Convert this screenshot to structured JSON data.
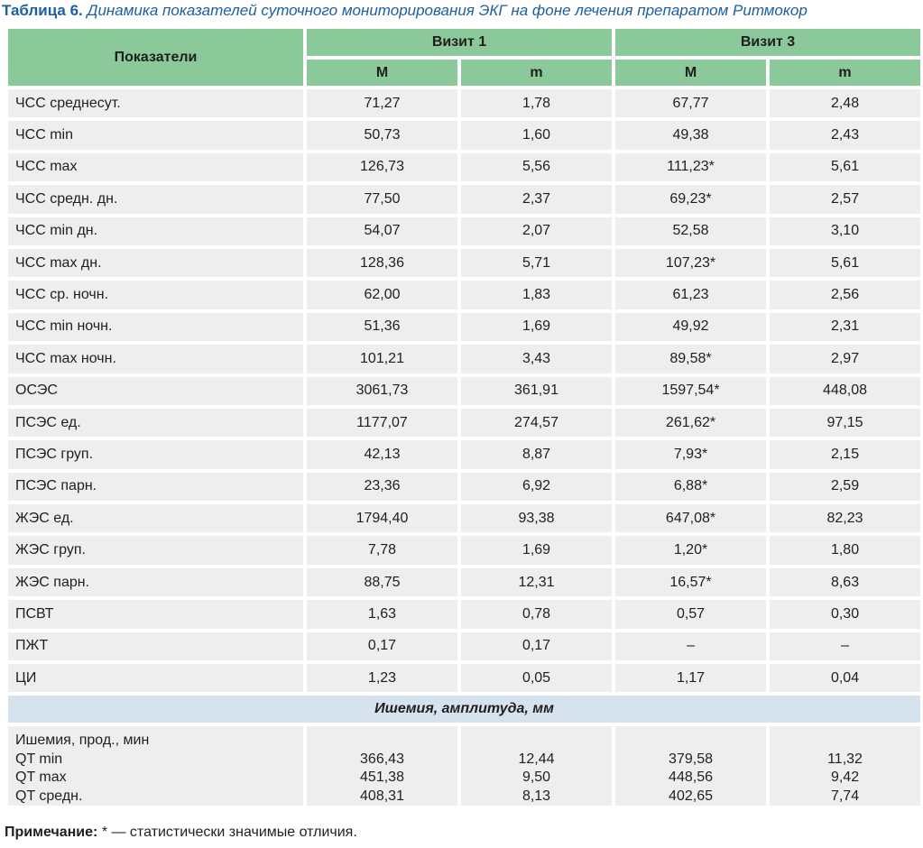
{
  "caption": {
    "label": "Таблица 6.",
    "title": "Динамика показателей суточного мониторирования ЭКГ на фоне лечения препаратом Ритмокор"
  },
  "header": {
    "indicator": "Показатели",
    "visit1": "Визит 1",
    "visit3": "Визит 3",
    "sub": [
      "M",
      "m",
      "M",
      "m"
    ]
  },
  "rows": [
    {
      "name": "ЧСС среднесут.",
      "v1M": "71,27",
      "v1m": "1,78",
      "v3M": "67,77",
      "v3m": "2,48"
    },
    {
      "name": "ЧСС min",
      "v1M": "50,73",
      "v1m": "1,60",
      "v3M": "49,38",
      "v3m": "2,43"
    },
    {
      "name": "ЧСС max",
      "v1M": "126,73",
      "v1m": "5,56",
      "v3M": "111,23*",
      "v3m": "5,61"
    },
    {
      "name": "ЧСС средн. дн.",
      "v1M": "77,50",
      "v1m": "2,37",
      "v3M": "69,23*",
      "v3m": "2,57"
    },
    {
      "name": "ЧСС min дн.",
      "v1M": "54,07",
      "v1m": "2,07",
      "v3M": "52,58",
      "v3m": "3,10"
    },
    {
      "name": "ЧСС max дн.",
      "v1M": "128,36",
      "v1m": "5,71",
      "v3M": "107,23*",
      "v3m": "5,61"
    },
    {
      "name": "ЧСС ср. ночн.",
      "v1M": "62,00",
      "v1m": "1,83",
      "v3M": "61,23",
      "v3m": "2,56"
    },
    {
      "name": "ЧСС min ночн.",
      "v1M": "51,36",
      "v1m": "1,69",
      "v3M": "49,92",
      "v3m": "2,31"
    },
    {
      "name": "ЧСС max ночн.",
      "v1M": "101,21",
      "v1m": "3,43",
      "v3M": "89,58*",
      "v3m": "2,97"
    },
    {
      "name": "ОСЭС",
      "v1M": "3061,73",
      "v1m": "361,91",
      "v3M": "1597,54*",
      "v3m": "448,08"
    },
    {
      "name": "ПСЭС ед.",
      "v1M": "1177,07",
      "v1m": "274,57",
      "v3M": "261,62*",
      "v3m": "97,15"
    },
    {
      "name": "ПСЭС груп.",
      "v1M": "42,13",
      "v1m": "8,87",
      "v3M": "7,93*",
      "v3m": "2,15"
    },
    {
      "name": "ПСЭС парн.",
      "v1M": "23,36",
      "v1m": "6,92",
      "v3M": "6,88*",
      "v3m": "2,59"
    },
    {
      "name": "ЖЭС ед.",
      "v1M": "1794,40",
      "v1m": "93,38",
      "v3M": "647,08*",
      "v3m": "82,23"
    },
    {
      "name": "ЖЭС груп.",
      "v1M": "7,78",
      "v1m": "1,69",
      "v3M": "1,20*",
      "v3m": "1,80"
    },
    {
      "name": "ЖЭС парн.",
      "v1M": "88,75",
      "v1m": "12,31",
      "v3M": "16,57*",
      "v3m": "8,63"
    },
    {
      "name": "ПСВТ",
      "v1M": "1,63",
      "v1m": "0,78",
      "v3M": "0,57",
      "v3m": "0,30"
    },
    {
      "name": "ПЖТ",
      "v1M": "0,17",
      "v1m": "0,17",
      "v3M": "–",
      "v3m": "–"
    },
    {
      "name": "ЦИ",
      "v1M": "1,23",
      "v1m": "0,05",
      "v3M": "1,17",
      "v3m": "0,04"
    }
  ],
  "section": "Ишемия, амплитуда, мм",
  "ischemia": {
    "names": [
      "Ишемия, прод., мин",
      "QT min",
      "QT max",
      "QT средн."
    ],
    "v1M": [
      "",
      "366,43",
      "451,38",
      "408,31"
    ],
    "v1m": [
      "",
      "12,44",
      "9,50",
      "8,13"
    ],
    "v3M": [
      "",
      "379,58",
      "448,56",
      "402,65"
    ],
    "v3m": [
      "",
      "11,32",
      "9,42",
      "7,74"
    ]
  },
  "note": {
    "label": "Примечание:",
    "text": "* — статистически значимые отличия."
  },
  "colors": {
    "caption": "#1c5fa5",
    "header_bg": "#8cc99a",
    "cell_bg": "#eeeeee",
    "section_bg": "#d6e3ee"
  }
}
